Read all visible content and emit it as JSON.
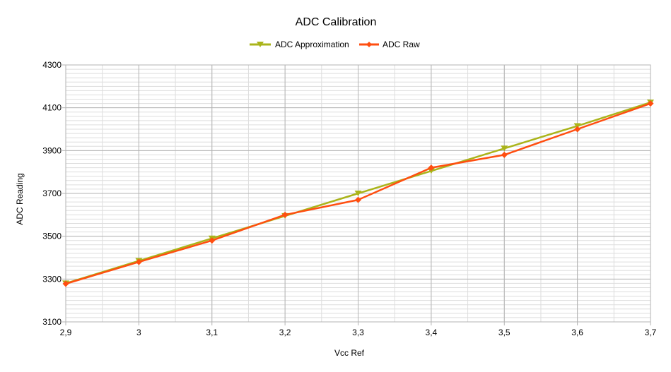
{
  "chart_data": {
    "type": "line",
    "title": "ADC Calibration",
    "xlabel": "Vcc Ref",
    "ylabel": "ADC Reading",
    "x": [
      2.9,
      3.0,
      3.1,
      3.2,
      3.3,
      3.4,
      3.5,
      3.6,
      3.7
    ],
    "x_tick_labels": [
      "2,9",
      "3",
      "3,1",
      "3,2",
      "3,3",
      "3,4",
      "3,5",
      "3,6",
      "3,7"
    ],
    "xlim": [
      2.9,
      3.7
    ],
    "ylim": [
      3100,
      4300
    ],
    "y_ticks": [
      3100,
      3300,
      3500,
      3700,
      3900,
      4100,
      4300
    ],
    "y_tick_labels": [
      "3100",
      "3300",
      "3500",
      "3700",
      "3900",
      "4100",
      "4300"
    ],
    "grid": true,
    "legend_position": "top-center",
    "series": [
      {
        "name": "ADC Approximation",
        "color": "#aab41a",
        "marker": "triangle-down",
        "values": [
          3280,
          3385,
          3490,
          3595,
          3700,
          3805,
          3910,
          4015,
          4125
        ]
      },
      {
        "name": "ADC Raw",
        "color": "#ff4e10",
        "marker": "diamond",
        "values": [
          3278,
          3380,
          3480,
          3600,
          3670,
          3820,
          3880,
          4000,
          4120
        ]
      }
    ]
  }
}
